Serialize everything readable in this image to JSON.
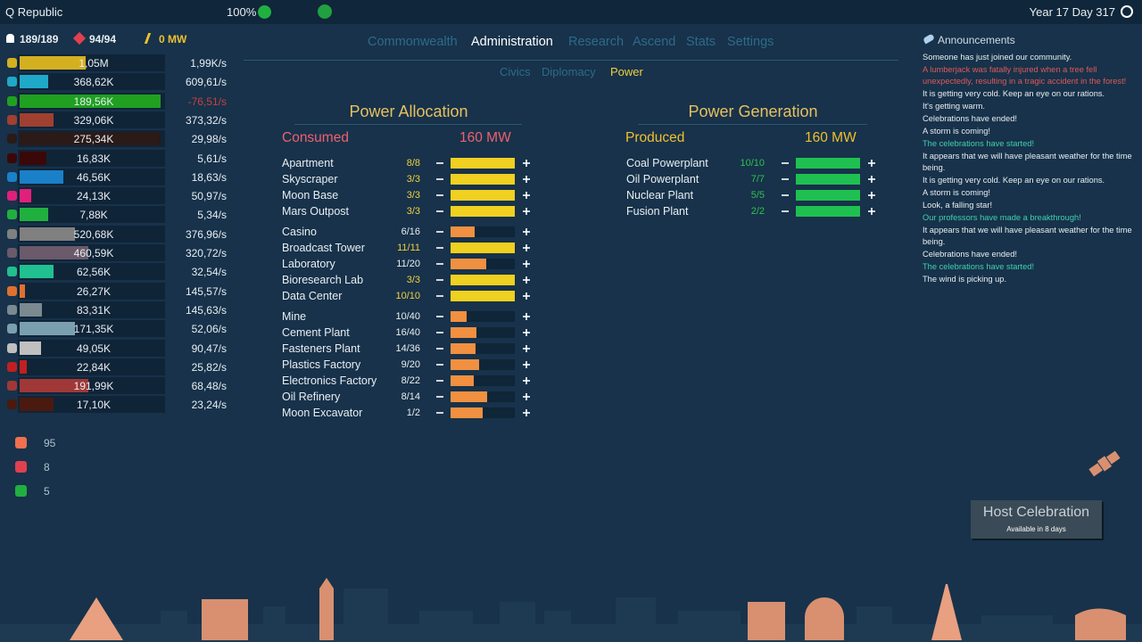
{
  "header": {
    "title": "Q Republic",
    "happiness": "100%",
    "date": "Year 17 Day 317"
  },
  "stats": {
    "population": "189/189",
    "workers": "94/94",
    "power": "0 MW"
  },
  "tabs": {
    "items": [
      "Commonwealth",
      "Administration",
      "Research",
      "Ascend",
      "Stats",
      "Settings"
    ],
    "active": 1
  },
  "subtabs": {
    "items": [
      "Civics",
      "Diplomacy",
      "Power"
    ],
    "active": 2
  },
  "resources": [
    {
      "amount": "1,05M",
      "rate": "1,99K/s",
      "color": "#d4b020",
      "fill": 0.47
    },
    {
      "amount": "368,62K",
      "rate": "609,61/s",
      "color": "#20a8c8",
      "fill": 0.2
    },
    {
      "amount": "189,56K",
      "rate": "-76,51/s",
      "color": "#20a020",
      "fill": 1.0,
      "rate_color": "#c84040"
    },
    {
      "amount": "329,06K",
      "rate": "373,32/s",
      "color": "#a04030",
      "fill": 0.24
    },
    {
      "amount": "275,34K",
      "rate": "29,98/s",
      "color": "#2a1a18",
      "fill": 1.0
    },
    {
      "amount": "16,83K",
      "rate": "5,61/s",
      "color": "#3a0808",
      "fill": 0.19
    },
    {
      "amount": "46,56K",
      "rate": "18,63/s",
      "color": "#1a80c8",
      "fill": 0.31
    },
    {
      "amount": "24,13K",
      "rate": "50,97/s",
      "color": "#e0207a",
      "fill": 0.08
    },
    {
      "amount": "7,88K",
      "rate": "5,34/s",
      "color": "#20b040",
      "fill": 0.2
    },
    {
      "amount": "520,68K",
      "rate": "376,96/s",
      "color": "#808080",
      "fill": 0.39
    },
    {
      "amount": "460,59K",
      "rate": "320,72/s",
      "color": "#6a5a6a",
      "fill": 0.49
    },
    {
      "amount": "62,56K",
      "rate": "32,54/s",
      "color": "#20c090",
      "fill": 0.24
    },
    {
      "amount": "26,27K",
      "rate": "145,57/s",
      "color": "#e07030",
      "fill": 0.04
    },
    {
      "amount": "83,31K",
      "rate": "145,63/s",
      "color": "#7a8a90",
      "fill": 0.16
    },
    {
      "amount": "171,35K",
      "rate": "52,06/s",
      "color": "#7aa0b0",
      "fill": 0.39
    },
    {
      "amount": "49,05K",
      "rate": "90,47/s",
      "color": "#c0c0c0",
      "fill": 0.15
    },
    {
      "amount": "22,84K",
      "rate": "25,82/s",
      "color": "#c02020",
      "fill": 0.05
    },
    {
      "amount": "191,99K",
      "rate": "68,48/s",
      "color": "#a03838",
      "fill": 0.49
    },
    {
      "amount": "17,10K",
      "rate": "23,24/s",
      "color": "#4a1a10",
      "fill": 0.24
    }
  ],
  "counters": [
    {
      "value": "95",
      "color": "#f07050"
    },
    {
      "value": "8",
      "color": "#e04050"
    },
    {
      "value": "5",
      "color": "#20b040"
    }
  ],
  "allocation": {
    "title": "Power Allocation",
    "label": "Consumed",
    "total": "160 MW",
    "groups": [
      [
        {
          "name": "Apartment",
          "count": "8/8",
          "fill": 1
        },
        {
          "name": "Skyscraper",
          "count": "3/3",
          "fill": 1
        },
        {
          "name": "Moon Base",
          "count": "3/3",
          "fill": 1
        },
        {
          "name": "Mars Outpost",
          "count": "3/3",
          "fill": 1
        }
      ],
      [
        {
          "name": "Casino",
          "count": "6/16",
          "fill": 0.375
        },
        {
          "name": "Broadcast Tower",
          "count": "11/11",
          "fill": 1
        },
        {
          "name": "Laboratory",
          "count": "11/20",
          "fill": 0.55
        },
        {
          "name": "Bioresearch Lab",
          "count": "3/3",
          "fill": 1
        },
        {
          "name": "Data Center",
          "count": "10/10",
          "fill": 1
        }
      ],
      [
        {
          "name": "Mine",
          "count": "10/40",
          "fill": 0.25
        },
        {
          "name": "Cement Plant",
          "count": "16/40",
          "fill": 0.4
        },
        {
          "name": "Fasteners Plant",
          "count": "14/36",
          "fill": 0.39
        },
        {
          "name": "Plastics Factory",
          "count": "9/20",
          "fill": 0.45
        },
        {
          "name": "Electronics Factory",
          "count": "8/22",
          "fill": 0.36
        },
        {
          "name": "Oil Refinery",
          "count": "8/14",
          "fill": 0.57
        },
        {
          "name": "Moon Excavator",
          "count": "1/2",
          "fill": 0.5
        }
      ]
    ]
  },
  "generation": {
    "title": "Power Generation",
    "label": "Produced",
    "total": "160 MW",
    "rows": [
      {
        "name": "Coal Powerplant",
        "count": "10/10",
        "fill": 1
      },
      {
        "name": "Oil Powerplant",
        "count": "7/7",
        "fill": 1
      },
      {
        "name": "Nuclear Plant",
        "count": "5/5",
        "fill": 1
      },
      {
        "name": "Fusion Plant",
        "count": "2/2",
        "fill": 1
      }
    ]
  },
  "announcements": {
    "title": "Announcements",
    "items": [
      {
        "text": "Someone has just joined our community.",
        "color": "#e8eef2"
      },
      {
        "text": "A lumberjack was fatally injured when a tree fell unexpectedly, resulting in a tragic accident in the forest!",
        "color": "#e05858"
      },
      {
        "text": "It is getting very cold. Keep an eye on our rations.",
        "color": "#e8eef2"
      },
      {
        "text": "It's getting warm.",
        "color": "#e8eef2"
      },
      {
        "text": "Celebrations have ended!",
        "color": "#e8eef2"
      },
      {
        "text": "A storm is coming!",
        "color": "#e8eef2"
      },
      {
        "text": "The celebrations have started!",
        "color": "#40d0b0"
      },
      {
        "text": "It appears that we will have pleasant weather for the time being.",
        "color": "#e8eef2"
      },
      {
        "text": "It is getting very cold. Keep an eye on our rations.",
        "color": "#e8eef2"
      },
      {
        "text": "A storm is coming!",
        "color": "#e8eef2"
      },
      {
        "text": "Look, a falling star!",
        "color": "#e8eef2"
      },
      {
        "text": "Our professors have made a breakthrough!",
        "color": "#40d0b0"
      },
      {
        "text": "It appears that we will have pleasant weather for the time being.",
        "color": "#e8eef2"
      },
      {
        "text": "Celebrations have ended!",
        "color": "#e8eef2"
      },
      {
        "text": "The celebrations have started!",
        "color": "#40d0b0"
      },
      {
        "text": "The wind is picking up.",
        "color": "#e8eef2"
      }
    ]
  },
  "button": {
    "label": "Host Celebration",
    "note": "Available in 8 days"
  }
}
